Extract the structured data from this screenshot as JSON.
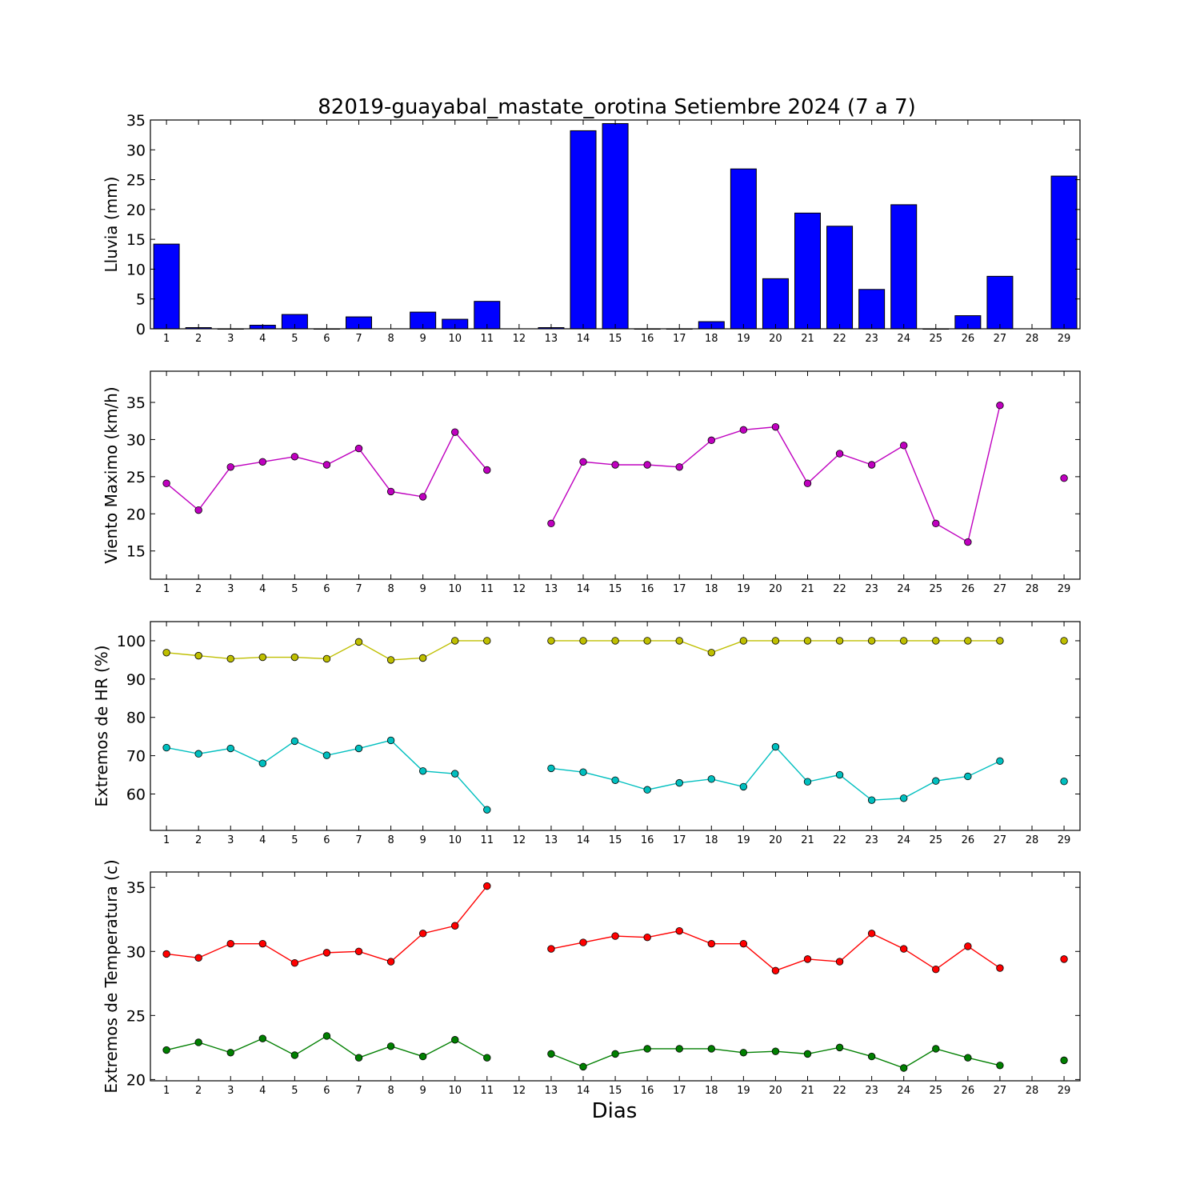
{
  "chart_data": [
    {
      "type": "bar",
      "title": "82019-guayabal_mastate_orotina Setiembre 2024  (7 a 7)",
      "ylabel": "Lluvia (mm)",
      "xlabel": "",
      "ylim": [
        0,
        35
      ],
      "yticks": [
        0,
        5,
        10,
        15,
        20,
        25,
        30,
        35
      ],
      "categories": [
        1,
        2,
        3,
        4,
        5,
        6,
        7,
        8,
        9,
        10,
        11,
        12,
        13,
        14,
        15,
        16,
        17,
        18,
        19,
        20,
        21,
        22,
        23,
        24,
        25,
        26,
        27,
        28,
        29
      ],
      "values": [
        14.2,
        0.2,
        0,
        0.6,
        2.4,
        0,
        2.0,
        null,
        2.8,
        1.6,
        4.6,
        null,
        0.2,
        33.2,
        34.4,
        0,
        0,
        1.2,
        26.8,
        8.4,
        19.4,
        17.2,
        6.6,
        20.8,
        0,
        2.2,
        8.8,
        null,
        25.6
      ],
      "colors": {
        "bar": "#0000ff"
      }
    },
    {
      "type": "line",
      "title": "",
      "ylabel": "Viento Maximo (km/h)",
      "xlabel": "",
      "ylim": [
        11.2,
        39.2
      ],
      "yticks": [
        15,
        20,
        25,
        30,
        35
      ],
      "x": [
        1,
        2,
        3,
        4,
        5,
        6,
        7,
        8,
        9,
        10,
        11,
        12,
        13,
        14,
        15,
        16,
        17,
        18,
        19,
        20,
        21,
        22,
        23,
        24,
        25,
        26,
        27,
        28,
        29
      ],
      "series": [
        {
          "color": "#bf00bf",
          "values": [
            24.1,
            20.5,
            26.3,
            27.0,
            27.7,
            26.6,
            28.8,
            23.0,
            22.3,
            31.0,
            25.9,
            null,
            18.7,
            27.0,
            26.6,
            26.6,
            26.3,
            29.9,
            31.3,
            31.7,
            24.1,
            28.1,
            26.6,
            29.2,
            18.7,
            16.2,
            34.6,
            null,
            24.8
          ]
        }
      ]
    },
    {
      "type": "line",
      "title": "",
      "ylabel": "Extremos de HR (%)",
      "xlabel": "",
      "ylim": [
        50.5,
        105
      ],
      "yticks": [
        60,
        70,
        80,
        90,
        100
      ],
      "x": [
        1,
        2,
        3,
        4,
        5,
        6,
        7,
        8,
        9,
        10,
        11,
        12,
        13,
        14,
        15,
        16,
        17,
        18,
        19,
        20,
        21,
        22,
        23,
        24,
        25,
        26,
        27,
        28,
        29
      ],
      "series": [
        {
          "color": "#bfbf00",
          "values": [
            96.9,
            96.1,
            95.3,
            95.7,
            95.7,
            95.3,
            99.7,
            95.0,
            95.5,
            100,
            100,
            null,
            100,
            100,
            100,
            100,
            100,
            96.9,
            100,
            100,
            100,
            100,
            100,
            100,
            100,
            100,
            100,
            null,
            100
          ]
        },
        {
          "color": "#00bfbf",
          "values": [
            72.1,
            70.5,
            71.9,
            68.0,
            73.8,
            70.1,
            71.9,
            74.0,
            66.0,
            65.3,
            55.9,
            null,
            66.7,
            65.7,
            63.6,
            61.1,
            62.9,
            63.9,
            61.9,
            72.3,
            63.2,
            65.0,
            58.4,
            58.9,
            63.4,
            64.6,
            68.6,
            null,
            63.3
          ]
        }
      ]
    },
    {
      "type": "line",
      "title": "",
      "ylabel": "Extremos de Temperatura (c)",
      "xlabel": "Dias",
      "ylim": [
        19.9,
        36.2
      ],
      "yticks": [
        20,
        25,
        30,
        35
      ],
      "x": [
        1,
        2,
        3,
        4,
        5,
        6,
        7,
        8,
        9,
        10,
        11,
        12,
        13,
        14,
        15,
        16,
        17,
        18,
        19,
        20,
        21,
        22,
        23,
        24,
        25,
        26,
        27,
        28,
        29
      ],
      "series": [
        {
          "color": "#ff0000",
          "values": [
            29.8,
            29.5,
            30.6,
            30.6,
            29.1,
            29.9,
            30.0,
            29.2,
            31.4,
            32.0,
            35.1,
            null,
            30.2,
            30.7,
            31.2,
            31.1,
            31.6,
            30.6,
            30.6,
            28.5,
            29.4,
            29.2,
            31.4,
            30.2,
            28.6,
            30.4,
            28.7,
            null,
            29.4
          ]
        },
        {
          "color": "#007f00",
          "values": [
            22.3,
            22.9,
            22.1,
            23.2,
            21.9,
            23.4,
            21.7,
            22.6,
            21.8,
            23.1,
            21.7,
            null,
            22.0,
            21.0,
            22.0,
            22.4,
            22.4,
            22.4,
            22.1,
            22.2,
            22.0,
            22.5,
            21.8,
            20.9,
            22.4,
            21.7,
            21.1,
            null,
            21.5
          ]
        }
      ]
    }
  ]
}
